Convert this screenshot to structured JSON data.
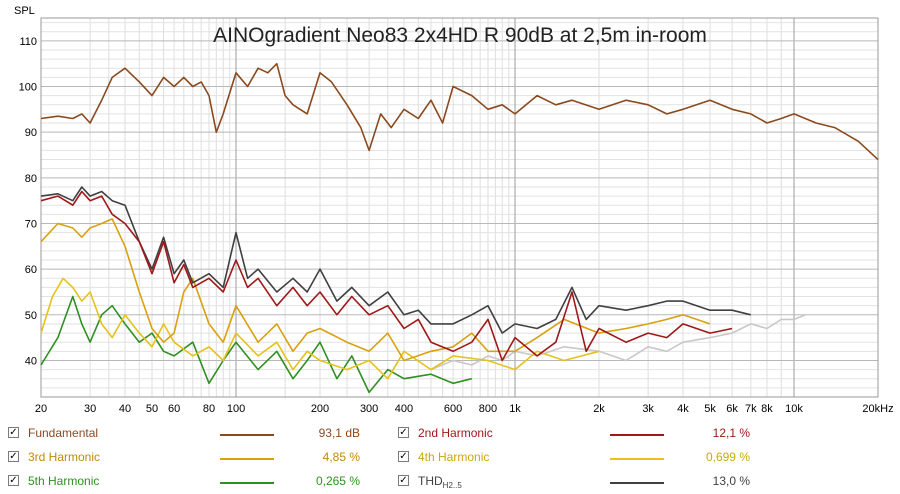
{
  "chart_data": {
    "type": "line",
    "title": "AINOgradient Neo83 2x4HD R 90dB at 2,5m in-room",
    "ylabel": "SPL",
    "xlabel": "",
    "x_scale": "log",
    "xlim": [
      20,
      20000
    ],
    "ylim": [
      32,
      115
    ],
    "grid": true,
    "x_tick_labels": [
      {
        "v": 20,
        "t": "20"
      },
      {
        "v": 30,
        "t": "30"
      },
      {
        "v": 40,
        "t": "40"
      },
      {
        "v": 50,
        "t": "50"
      },
      {
        "v": 60,
        "t": "60"
      },
      {
        "v": 80,
        "t": "80"
      },
      {
        "v": 100,
        "t": "100"
      },
      {
        "v": 200,
        "t": "200"
      },
      {
        "v": 300,
        "t": "300"
      },
      {
        "v": 400,
        "t": "400"
      },
      {
        "v": 600,
        "t": "600"
      },
      {
        "v": 800,
        "t": "800"
      },
      {
        "v": 1000,
        "t": "1k"
      },
      {
        "v": 2000,
        "t": "2k"
      },
      {
        "v": 3000,
        "t": "3k"
      },
      {
        "v": 4000,
        "t": "4k"
      },
      {
        "v": 5000,
        "t": "5k"
      },
      {
        "v": 6000,
        "t": "6k"
      },
      {
        "v": 7000,
        "t": "7k"
      },
      {
        "v": 8000,
        "t": "8k"
      },
      {
        "v": 10000,
        "t": "10k"
      },
      {
        "v": 20000,
        "t": "20kHz"
      }
    ],
    "y_tick_labels": [
      40,
      50,
      60,
      70,
      80,
      90,
      100,
      110
    ],
    "series": [
      {
        "name": "Fundamental",
        "color": "#8b4a1e",
        "x": [
          20,
          23,
          26,
          28,
          30,
          33,
          36,
          40,
          45,
          50,
          55,
          60,
          65,
          70,
          75,
          80,
          85,
          90,
          100,
          110,
          120,
          130,
          140,
          150,
          160,
          180,
          200,
          220,
          250,
          280,
          300,
          330,
          360,
          400,
          450,
          500,
          550,
          600,
          700,
          800,
          900,
          1000,
          1200,
          1400,
          1600,
          2000,
          2500,
          3000,
          3500,
          4000,
          5000,
          6000,
          7000,
          8000,
          9000,
          10000,
          12000,
          14000,
          17000,
          20000
        ],
        "y": [
          93,
          93.5,
          93,
          94,
          92,
          97,
          102,
          104,
          101,
          98,
          102,
          100,
          102,
          100,
          101,
          98,
          90,
          94,
          103,
          100,
          104,
          103,
          105,
          98,
          96,
          94,
          103,
          101,
          96,
          91,
          86,
          94,
          91,
          95,
          93,
          97,
          92,
          100,
          98,
          95,
          96,
          94,
          98,
          96,
          97,
          95,
          97,
          96,
          94,
          95,
          97,
          95,
          94,
          92,
          93,
          94,
          92,
          91,
          88,
          84
        ]
      },
      {
        "name": "2nd Harmonic",
        "color": "#a01818",
        "x": [
          20,
          23,
          26,
          28,
          30,
          33,
          36,
          40,
          45,
          50,
          55,
          60,
          65,
          70,
          80,
          90,
          100,
          110,
          120,
          140,
          160,
          180,
          200,
          230,
          260,
          300,
          350,
          400,
          450,
          500,
          600,
          700,
          800,
          900,
          1000,
          1200,
          1400,
          1600,
          1800,
          2000,
          2500,
          3000,
          3500,
          4000,
          5000,
          6000
        ],
        "y": [
          75,
          76,
          74,
          77,
          75,
          76,
          72,
          70,
          66,
          59,
          66,
          57,
          61,
          56,
          58,
          55,
          62,
          56,
          58,
          52,
          56,
          52,
          55,
          50,
          54,
          50,
          52,
          47,
          49,
          44,
          42,
          44,
          49,
          40,
          45,
          41,
          44,
          55,
          42,
          47,
          44,
          46,
          45,
          48,
          46,
          47
        ]
      },
      {
        "name": "3rd Harmonic",
        "color": "#d9a010",
        "x": [
          20,
          23,
          26,
          28,
          30,
          33,
          36,
          40,
          45,
          50,
          55,
          60,
          65,
          70,
          80,
          90,
          100,
          120,
          140,
          160,
          180,
          200,
          250,
          300,
          350,
          400,
          500,
          600,
          700,
          800,
          1000,
          1200,
          1500,
          2000,
          2500,
          3000,
          3500,
          4000,
          5000
        ],
        "y": [
          66,
          70,
          69,
          67,
          69,
          70,
          71,
          65,
          55,
          47,
          44,
          46,
          55,
          58,
          48,
          44,
          52,
          44,
          48,
          42,
          46,
          47,
          44,
          42,
          46,
          40,
          42,
          43,
          46,
          42,
          42,
          45,
          49,
          46,
          47,
          48,
          49,
          50,
          48
        ]
      },
      {
        "name": "4th Harmonic",
        "color": "#e6c21a",
        "x": [
          20,
          22,
          24,
          26,
          28,
          30,
          33,
          36,
          40,
          45,
          50,
          55,
          60,
          70,
          80,
          90,
          100,
          120,
          140,
          160,
          180,
          200,
          250,
          300,
          350,
          400,
          500,
          600,
          800,
          1000,
          1200,
          1500,
          2000
        ],
        "y": [
          46,
          54,
          58,
          56,
          53,
          55,
          48,
          45,
          50,
          46,
          43,
          48,
          44,
          41,
          43,
          40,
          46,
          41,
          44,
          38,
          42,
          40,
          38,
          40,
          36,
          42,
          38,
          41,
          40,
          38,
          42,
          40,
          42
        ]
      },
      {
        "name": "5th Harmonic",
        "color": "#2f8f22",
        "x": [
          20,
          23,
          26,
          28,
          30,
          33,
          36,
          40,
          45,
          50,
          55,
          60,
          70,
          80,
          90,
          100,
          120,
          140,
          160,
          180,
          200,
          230,
          260,
          300,
          350,
          400,
          500,
          600,
          700
        ],
        "y": [
          39,
          45,
          54,
          48,
          44,
          50,
          52,
          48,
          44,
          46,
          42,
          41,
          44,
          35,
          40,
          44,
          38,
          42,
          36,
          40,
          44,
          36,
          41,
          33,
          38,
          36,
          37,
          35,
          36
        ]
      },
      {
        "name": "THD",
        "color": "#404040",
        "x": [
          20,
          23,
          26,
          28,
          30,
          33,
          36,
          40,
          45,
          50,
          55,
          60,
          65,
          70,
          80,
          90,
          100,
          110,
          120,
          140,
          160,
          180,
          200,
          230,
          260,
          300,
          350,
          400,
          450,
          500,
          600,
          700,
          800,
          900,
          1000,
          1200,
          1400,
          1600,
          1800,
          2000,
          2500,
          3000,
          3500,
          4000,
          5000,
          6000,
          7000
        ],
        "y": [
          76,
          76.5,
          75,
          78,
          76,
          77,
          75,
          74,
          66,
          60,
          67,
          59,
          62,
          57,
          59,
          56,
          68,
          58,
          60,
          55,
          58,
          55,
          60,
          53,
          56,
          52,
          55,
          50,
          51,
          48,
          48,
          50,
          52,
          46,
          48,
          47,
          49,
          56,
          49,
          52,
          51,
          52,
          53,
          53,
          51,
          51,
          50
        ]
      },
      {
        "name": "",
        "color": "#c8c8c8",
        "x": [
          500,
          600,
          700,
          800,
          900,
          1000,
          1200,
          1500,
          2000,
          2500,
          3000,
          3500,
          4000,
          5000,
          6000,
          7000,
          8000,
          9000,
          10000,
          11000
        ],
        "y": [
          38,
          40,
          39,
          41,
          40,
          42,
          41,
          43,
          42,
          40,
          43,
          42,
          44,
          45,
          46,
          48,
          47,
          49,
          49,
          50
        ]
      }
    ]
  },
  "legend": [
    {
      "name": "Fundamental",
      "value": "93,1 dB",
      "color": "#8b4a1e",
      "checked": true
    },
    {
      "name": "2nd Harmonic",
      "value": "12,1 %",
      "color": "#a01818",
      "checked": true
    },
    {
      "name": "3rd Harmonic",
      "value": "4,85 %",
      "color": "#d9a010",
      "checked": true
    },
    {
      "name": "4th Harmonic",
      "value": "0,699 %",
      "color": "#e6c21a",
      "checked": true
    },
    {
      "name": "5th Harmonic",
      "value": "0,265 %",
      "color": "#2f8f22",
      "checked": true
    },
    {
      "name": "THD",
      "sub": "H2..5",
      "value": "13,0 %",
      "color": "#404040",
      "checked": true
    }
  ],
  "checkmark": "✓"
}
